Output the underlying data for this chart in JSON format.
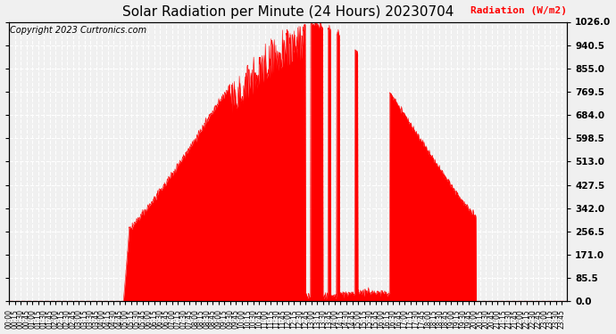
{
  "title": "Solar Radiation per Minute (24 Hours) 20230704",
  "ylabel": "Radiation (W/m2)",
  "ylabel_color": "red",
  "copyright_text": "Copyright 2023 Curtronics.com",
  "copyright_color": "black",
  "plot_bg_color": "#f0f0f0",
  "fig_bg_color": "#f0f0f0",
  "fill_color": "red",
  "line_color": "red",
  "dashed_line_color": "red",
  "grid_color": "white",
  "grid_linestyle": "--",
  "ylim": [
    0.0,
    1026.0
  ],
  "yticks": [
    0.0,
    85.5,
    171.0,
    256.5,
    342.0,
    427.5,
    513.0,
    598.5,
    684.0,
    769.5,
    855.0,
    940.5,
    1026.0
  ],
  "ytick_labels": [
    "0.0",
    "85.5",
    "171.0",
    "256.5",
    "342.0",
    "427.5",
    "513.0",
    "598.5",
    "684.0",
    "769.5",
    "855.0",
    "940.5",
    "1026.0"
  ],
  "total_minutes": 1440,
  "title_fontsize": 11,
  "copyright_fontsize": 7,
  "ylabel_fontsize": 8,
  "ytick_fontsize": 7.5,
  "xtick_fontsize": 5.5
}
